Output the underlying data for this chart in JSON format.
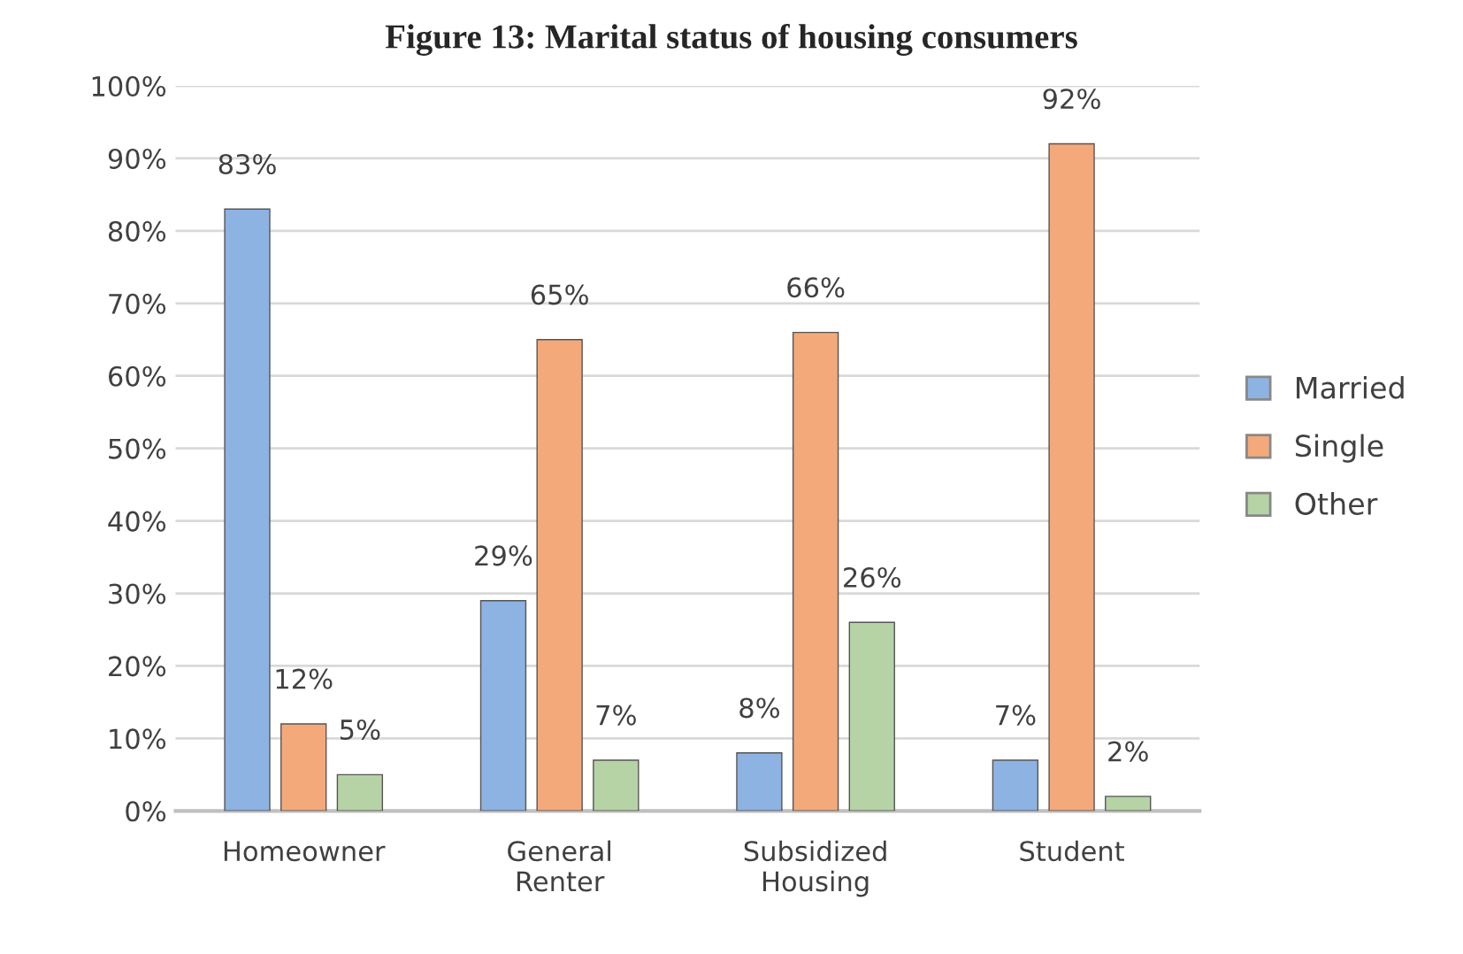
{
  "chart_data": {
    "type": "bar",
    "title": "Figure 13: Marital status of housing consumers",
    "categories": [
      "Homeowner",
      "General\nRenter",
      "Subsidized\nHousing",
      "Student"
    ],
    "series": [
      {
        "name": "Married",
        "color": "#8db3e2",
        "values": [
          83,
          29,
          8,
          7
        ],
        "value_labels": [
          "83%",
          "29%",
          "8%",
          "7%"
        ]
      },
      {
        "name": "Single",
        "color": "#f4a97a",
        "values": [
          12,
          65,
          66,
          92
        ],
        "value_labels": [
          "12%",
          "65%",
          "66%",
          "92%"
        ]
      },
      {
        "name": "Other",
        "color": "#b5d3a4",
        "values": [
          5,
          7,
          26,
          2
        ],
        "value_labels": [
          "5%",
          "7%",
          "26%",
          "2%"
        ]
      }
    ],
    "ylim": [
      0,
      100
    ],
    "yticks": [
      {
        "value": 0,
        "label": "0%"
      },
      {
        "value": 10,
        "label": "10%"
      },
      {
        "value": 20,
        "label": "20%"
      },
      {
        "value": 30,
        "label": "30%"
      },
      {
        "value": 40,
        "label": "40%"
      },
      {
        "value": 50,
        "label": "50%"
      },
      {
        "value": 60,
        "label": "60%"
      },
      {
        "value": 70,
        "label": "70%"
      },
      {
        "value": 80,
        "label": "80%"
      },
      {
        "value": 90,
        "label": "90%"
      },
      {
        "value": 100,
        "label": "100%"
      }
    ],
    "grid": "y",
    "legend": "right"
  }
}
